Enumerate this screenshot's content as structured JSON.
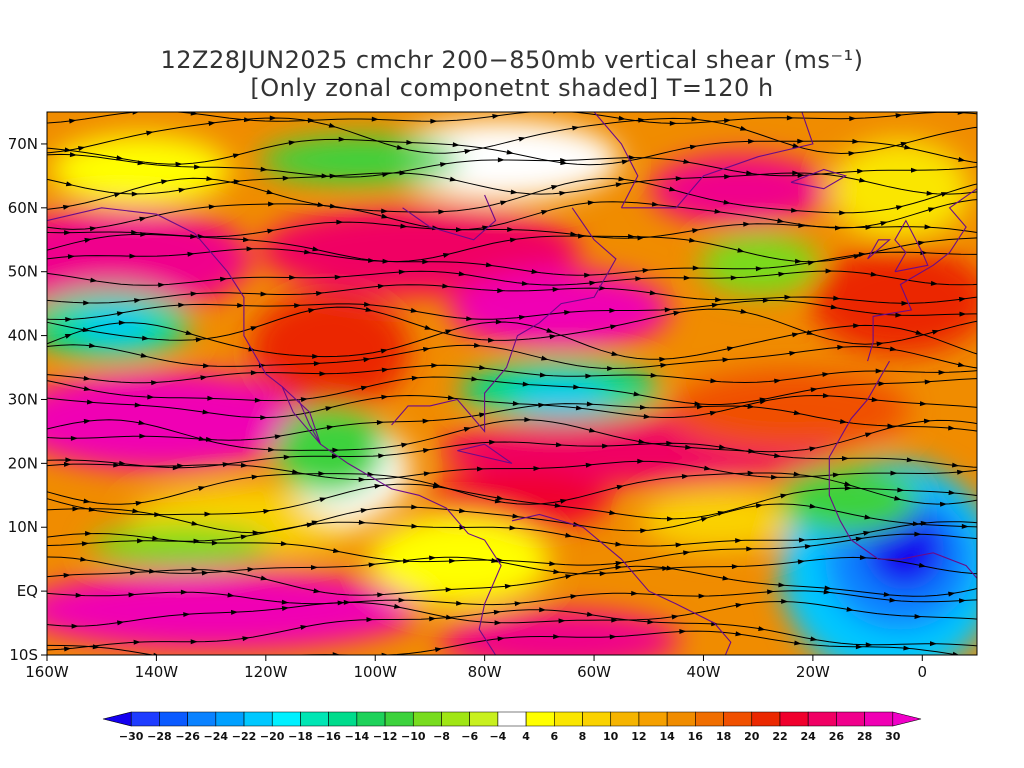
{
  "title": {
    "line1": "12Z28JUN2025 cmchr 200−850mb vertical shear (ms⁻¹)",
    "line2": "[Only zonal componetnt shaded] T=120 h"
  },
  "map": {
    "lat_range": [
      -10,
      75
    ],
    "lon_range": [
      -160,
      10
    ],
    "lat_labels": [
      {
        "value": 70,
        "label": "70N"
      },
      {
        "value": 60,
        "label": "60N"
      },
      {
        "value": 50,
        "label": "50N"
      },
      {
        "value": 40,
        "label": "40N"
      },
      {
        "value": 30,
        "label": "30N"
      },
      {
        "value": 20,
        "label": "20N"
      },
      {
        "value": 10,
        "label": "10N"
      },
      {
        "value": 0,
        "label": "EQ"
      },
      {
        "value": -10,
        "label": "10S"
      }
    ],
    "lon_labels": [
      {
        "value": -160,
        "label": "160W"
      },
      {
        "value": -140,
        "label": "140W"
      },
      {
        "value": -120,
        "label": "120W"
      },
      {
        "value": -100,
        "label": "100W"
      },
      {
        "value": -80,
        "label": "80W"
      },
      {
        "value": -60,
        "label": "60W"
      },
      {
        "value": -40,
        "label": "40W"
      },
      {
        "value": -20,
        "label": "20W"
      },
      {
        "value": 0,
        "label": "0"
      }
    ],
    "features": [
      {
        "name": "strong westerly shear band north pacific",
        "value": 28
      },
      {
        "name": "easterly shear tropical atlantic",
        "value": -26
      }
    ]
  },
  "colorbar": {
    "labels": [
      "-30",
      "-28",
      "-26",
      "-24",
      "-22",
      "-20",
      "-18",
      "-16",
      "-14",
      "-12",
      "-10",
      "-8",
      "-6",
      "-4",
      "4",
      "6",
      "8",
      "10",
      "12",
      "14",
      "16",
      "18",
      "20",
      "22",
      "24",
      "26",
      "28",
      "30"
    ],
    "colors": [
      "#1400f0",
      "#1e3cff",
      "#0a5aff",
      "#0a82ff",
      "#00a0ff",
      "#00c8ff",
      "#00f0ff",
      "#00e6b4",
      "#00dc8c",
      "#1ed25a",
      "#3cd23c",
      "#78dc1e",
      "#a0e614",
      "#c8f01e",
      "#ffffff",
      "#ffff00",
      "#fae600",
      "#fad200",
      "#f5b400",
      "#f5a000",
      "#f08c00",
      "#f06e00",
      "#f05000",
      "#eb2800",
      "#f0002d",
      "#f00064",
      "#f0008c",
      "#f000b4",
      "#f000c8"
    ]
  }
}
